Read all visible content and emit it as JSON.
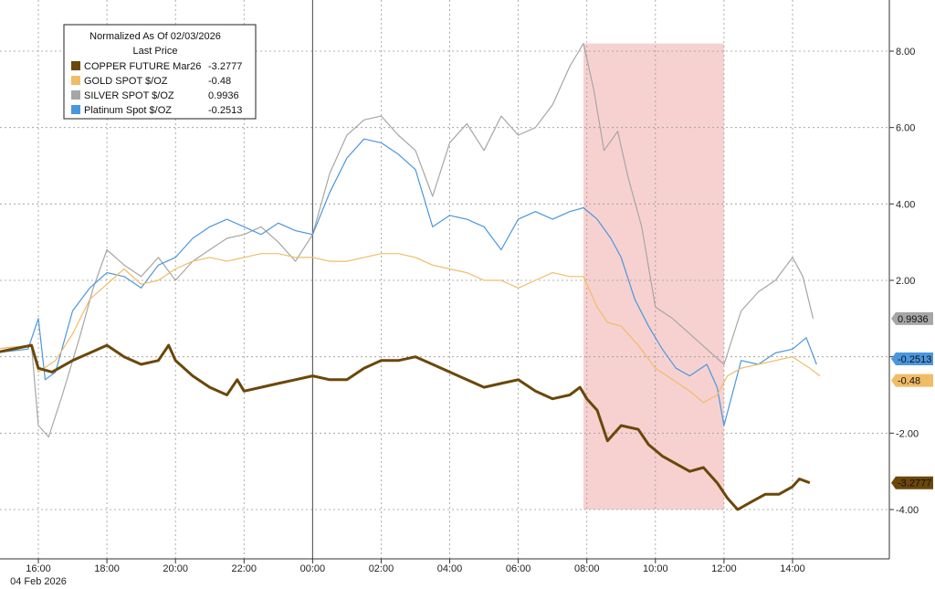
{
  "chart_data": {
    "type": "line",
    "title": "Normalized As Of 02/03/2026",
    "subtitle": "Last Price",
    "x_ticks": [
      "16:00",
      "18:00",
      "20:00",
      "22:00",
      "00:00",
      "02:00",
      "04:00",
      "06:00",
      "08:00",
      "10:00",
      "12:00",
      "14:00"
    ],
    "x_sublabel": "04 Feb 2026",
    "y_ticks": [
      "8.00",
      "6.00",
      "4.00",
      "2.00",
      "0.00",
      "-2.00",
      "-4.00"
    ],
    "ylim": [
      -5.3,
      9.0
    ],
    "xlim": [
      -1.3,
      23.7
    ],
    "grid": true,
    "legend_position": "top-left",
    "highlight_range": {
      "x": [
        15.9,
        20.0
      ],
      "y": [
        -4.0,
        8.2
      ],
      "color": "#f6c9c8"
    },
    "series": [
      {
        "name": "COPPER FUTURE Mar26",
        "last_value": "-3.2777",
        "color": "#6b4709",
        "points": [
          [
            -1.3,
            0.1
          ],
          [
            -0.2,
            0.3
          ],
          [
            0.0,
            -0.3
          ],
          [
            0.4,
            -0.4
          ],
          [
            1.0,
            -0.1
          ],
          [
            1.5,
            0.1
          ],
          [
            2.0,
            0.3
          ],
          [
            2.5,
            0.0
          ],
          [
            3.0,
            -0.2
          ],
          [
            3.5,
            -0.1
          ],
          [
            3.8,
            0.3
          ],
          [
            4.0,
            -0.1
          ],
          [
            4.5,
            -0.5
          ],
          [
            5.0,
            -0.8
          ],
          [
            5.5,
            -1.0
          ],
          [
            5.8,
            -0.6
          ],
          [
            6.0,
            -0.9
          ],
          [
            6.5,
            -0.8
          ],
          [
            7.0,
            -0.7
          ],
          [
            7.5,
            -0.6
          ],
          [
            8.0,
            -0.5
          ],
          [
            8.5,
            -0.6
          ],
          [
            9.0,
            -0.6
          ],
          [
            9.5,
            -0.3
          ],
          [
            10.0,
            -0.1
          ],
          [
            10.5,
            -0.1
          ],
          [
            11.0,
            0.0
          ],
          [
            11.5,
            -0.2
          ],
          [
            12.0,
            -0.4
          ],
          [
            12.5,
            -0.6
          ],
          [
            13.0,
            -0.8
          ],
          [
            13.5,
            -0.7
          ],
          [
            14.0,
            -0.6
          ],
          [
            14.5,
            -0.9
          ],
          [
            15.0,
            -1.1
          ],
          [
            15.5,
            -1.0
          ],
          [
            15.8,
            -0.8
          ],
          [
            16.0,
            -1.1
          ],
          [
            16.3,
            -1.4
          ],
          [
            16.6,
            -2.2
          ],
          [
            17.0,
            -1.8
          ],
          [
            17.5,
            -1.9
          ],
          [
            17.8,
            -2.3
          ],
          [
            18.2,
            -2.6
          ],
          [
            18.6,
            -2.8
          ],
          [
            19.0,
            -3.0
          ],
          [
            19.4,
            -2.9
          ],
          [
            19.8,
            -3.3
          ],
          [
            20.1,
            -3.7
          ],
          [
            20.4,
            -4.0
          ],
          [
            20.8,
            -3.8
          ],
          [
            21.2,
            -3.6
          ],
          [
            21.6,
            -3.6
          ],
          [
            22.0,
            -3.4
          ],
          [
            22.2,
            -3.2
          ],
          [
            22.5,
            -3.3
          ]
        ]
      },
      {
        "name": "GOLD SPOT $/OZ",
        "last_value": "-0.48",
        "color": "#f0bc66",
        "points": [
          [
            -1.3,
            0.2
          ],
          [
            -0.2,
            0.3
          ],
          [
            0.0,
            -0.4
          ],
          [
            0.5,
            -0.1
          ],
          [
            1.0,
            0.6
          ],
          [
            1.5,
            1.5
          ],
          [
            2.0,
            1.9
          ],
          [
            2.5,
            2.3
          ],
          [
            3.0,
            1.9
          ],
          [
            3.5,
            2.0
          ],
          [
            4.0,
            2.3
          ],
          [
            4.5,
            2.5
          ],
          [
            5.0,
            2.6
          ],
          [
            5.5,
            2.5
          ],
          [
            6.0,
            2.6
          ],
          [
            6.5,
            2.7
          ],
          [
            7.0,
            2.7
          ],
          [
            7.5,
            2.6
          ],
          [
            8.0,
            2.6
          ],
          [
            8.5,
            2.5
          ],
          [
            9.0,
            2.5
          ],
          [
            9.5,
            2.6
          ],
          [
            10.0,
            2.7
          ],
          [
            10.5,
            2.7
          ],
          [
            11.0,
            2.6
          ],
          [
            11.5,
            2.4
          ],
          [
            12.0,
            2.3
          ],
          [
            12.5,
            2.2
          ],
          [
            13.0,
            2.0
          ],
          [
            13.5,
            2.0
          ],
          [
            14.0,
            1.8
          ],
          [
            14.5,
            2.0
          ],
          [
            15.0,
            2.2
          ],
          [
            15.5,
            2.1
          ],
          [
            15.9,
            2.1
          ],
          [
            16.3,
            1.3
          ],
          [
            16.6,
            0.9
          ],
          [
            17.0,
            0.8
          ],
          [
            17.5,
            0.3
          ],
          [
            18.0,
            -0.3
          ],
          [
            18.5,
            -0.6
          ],
          [
            19.0,
            -0.9
          ],
          [
            19.4,
            -1.2
          ],
          [
            19.8,
            -1.0
          ],
          [
            20.1,
            -0.5
          ],
          [
            20.5,
            -0.3
          ],
          [
            21.0,
            -0.2
          ],
          [
            21.5,
            -0.1
          ],
          [
            22.0,
            0.0
          ],
          [
            22.5,
            -0.3
          ],
          [
            22.8,
            -0.5
          ]
        ]
      },
      {
        "name": "SILVER SPOT $/OZ",
        "last_value": "0.9936",
        "color": "#a6a6a6",
        "points": [
          [
            -1.3,
            0.2
          ],
          [
            -0.2,
            0.3
          ],
          [
            0.0,
            -1.8
          ],
          [
            0.3,
            -2.1
          ],
          [
            0.7,
            -1.0
          ],
          [
            1.2,
            0.5
          ],
          [
            1.6,
            1.8
          ],
          [
            2.0,
            2.8
          ],
          [
            2.5,
            2.4
          ],
          [
            3.0,
            2.1
          ],
          [
            3.5,
            2.6
          ],
          [
            4.0,
            2.0
          ],
          [
            4.5,
            2.5
          ],
          [
            5.0,
            2.8
          ],
          [
            5.5,
            3.1
          ],
          [
            6.0,
            3.2
          ],
          [
            6.5,
            3.4
          ],
          [
            7.0,
            3.0
          ],
          [
            7.5,
            2.5
          ],
          [
            8.0,
            3.2
          ],
          [
            8.5,
            4.8
          ],
          [
            9.0,
            5.8
          ],
          [
            9.5,
            6.2
          ],
          [
            10.0,
            6.3
          ],
          [
            10.5,
            5.8
          ],
          [
            11.0,
            5.4
          ],
          [
            11.5,
            4.2
          ],
          [
            12.0,
            5.6
          ],
          [
            12.5,
            6.1
          ],
          [
            13.0,
            5.4
          ],
          [
            13.5,
            6.3
          ],
          [
            14.0,
            5.8
          ],
          [
            14.5,
            6.0
          ],
          [
            15.0,
            6.6
          ],
          [
            15.5,
            7.6
          ],
          [
            15.9,
            8.2
          ],
          [
            16.2,
            7.0
          ],
          [
            16.5,
            5.4
          ],
          [
            16.9,
            5.9
          ],
          [
            17.2,
            4.7
          ],
          [
            17.6,
            3.4
          ],
          [
            18.0,
            1.3
          ],
          [
            18.5,
            1.0
          ],
          [
            19.0,
            0.6
          ],
          [
            19.5,
            0.2
          ],
          [
            20.0,
            -0.2
          ],
          [
            20.5,
            1.2
          ],
          [
            21.0,
            1.7
          ],
          [
            21.5,
            2.0
          ],
          [
            22.0,
            2.6
          ],
          [
            22.3,
            2.1
          ],
          [
            22.6,
            1.0
          ]
        ]
      },
      {
        "name": "Platinum Spot $/OZ",
        "last_value": "-0.2513",
        "color": "#4a97de",
        "points": [
          [
            -1.3,
            0.1
          ],
          [
            -0.3,
            0.2
          ],
          [
            0.0,
            1.0
          ],
          [
            0.2,
            -0.6
          ],
          [
            0.5,
            -0.4
          ],
          [
            1.0,
            1.2
          ],
          [
            1.5,
            1.8
          ],
          [
            2.0,
            2.2
          ],
          [
            2.5,
            2.1
          ],
          [
            3.0,
            1.8
          ],
          [
            3.5,
            2.4
          ],
          [
            4.0,
            2.6
          ],
          [
            4.5,
            3.1
          ],
          [
            5.0,
            3.4
          ],
          [
            5.5,
            3.6
          ],
          [
            6.0,
            3.4
          ],
          [
            6.5,
            3.2
          ],
          [
            7.0,
            3.5
          ],
          [
            7.5,
            3.3
          ],
          [
            8.0,
            3.2
          ],
          [
            8.5,
            4.3
          ],
          [
            9.0,
            5.2
          ],
          [
            9.5,
            5.7
          ],
          [
            10.0,
            5.6
          ],
          [
            10.5,
            5.3
          ],
          [
            11.0,
            4.9
          ],
          [
            11.5,
            3.4
          ],
          [
            12.0,
            3.7
          ],
          [
            12.5,
            3.6
          ],
          [
            13.0,
            3.4
          ],
          [
            13.5,
            2.8
          ],
          [
            14.0,
            3.6
          ],
          [
            14.5,
            3.8
          ],
          [
            15.0,
            3.6
          ],
          [
            15.5,
            3.8
          ],
          [
            15.9,
            3.9
          ],
          [
            16.3,
            3.6
          ],
          [
            16.7,
            3.1
          ],
          [
            17.0,
            2.6
          ],
          [
            17.4,
            1.5
          ],
          [
            17.8,
            0.8
          ],
          [
            18.2,
            0.2
          ],
          [
            18.6,
            -0.3
          ],
          [
            19.0,
            -0.5
          ],
          [
            19.5,
            -0.2
          ],
          [
            19.8,
            -0.8
          ],
          [
            20.0,
            -1.8
          ],
          [
            20.5,
            -0.1
          ],
          [
            21.0,
            -0.2
          ],
          [
            21.5,
            0.1
          ],
          [
            22.0,
            0.2
          ],
          [
            22.4,
            0.5
          ],
          [
            22.7,
            -0.2
          ]
        ]
      }
    ]
  }
}
